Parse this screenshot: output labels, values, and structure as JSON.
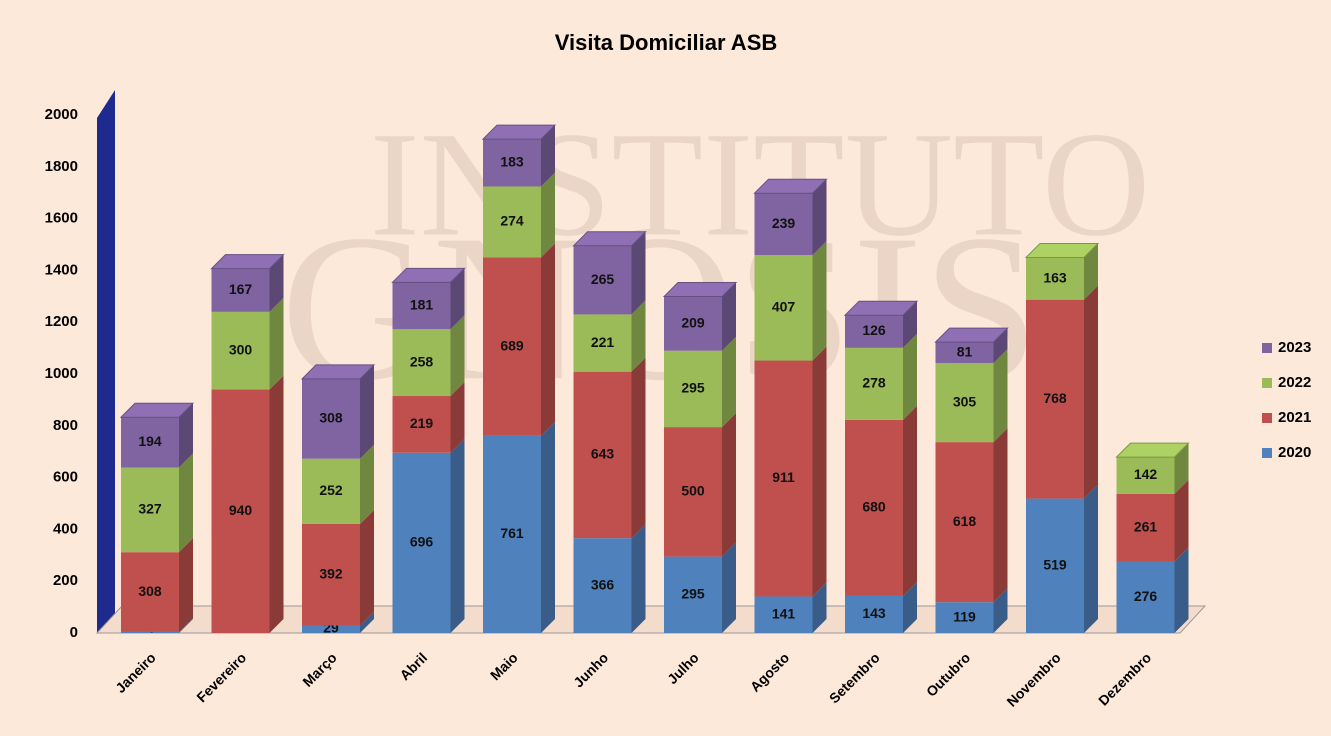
{
  "watermark": [
    "INSTITUTO",
    "GNOSIS"
  ],
  "chart_data": {
    "type": "bar",
    "stacked": true,
    "title": "Visita Domiciliar ASB",
    "categories": [
      "Janeiro",
      "Fevereiro",
      "Março",
      "Abril",
      "Maio",
      "Junho",
      "Julho",
      "Agosto",
      "Setembro",
      "Outubro",
      "Novembro",
      "Dezembro"
    ],
    "series": [
      {
        "name": "2020",
        "color": "#4f81bd",
        "values": [
          4,
          0,
          29,
          696,
          761,
          366,
          295,
          141,
          143,
          119,
          519,
          276
        ]
      },
      {
        "name": "2021",
        "color": "#c0504d",
        "values": [
          308,
          940,
          392,
          219,
          689,
          643,
          500,
          911,
          680,
          618,
          768,
          261
        ]
      },
      {
        "name": "2022",
        "color": "#9bbb59",
        "values": [
          327,
          300,
          252,
          258,
          274,
          221,
          295,
          407,
          278,
          305,
          163,
          142
        ]
      },
      {
        "name": "2023",
        "color": "#8064a2",
        "values": [
          194,
          167,
          308,
          181,
          183,
          265,
          209,
          239,
          126,
          81,
          null,
          null
        ]
      }
    ],
    "ylim": [
      0,
      2000
    ],
    "yticks": [
      0,
      200,
      400,
      600,
      800,
      1000,
      1200,
      1400,
      1600,
      1800,
      2000
    ],
    "legend": "right",
    "grid": false
  }
}
